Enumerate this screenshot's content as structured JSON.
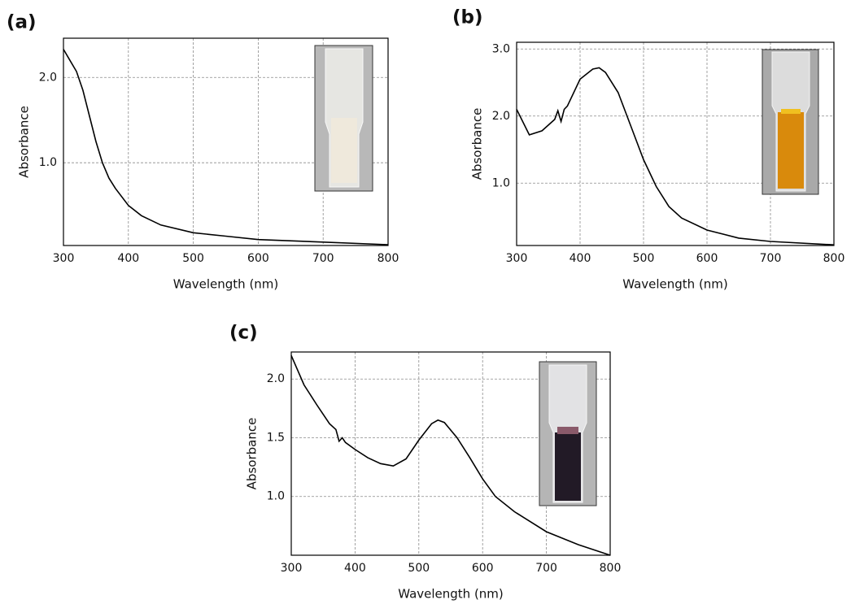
{
  "chart_data": [
    {
      "type": "line",
      "panel_label": "(a)",
      "xlabel": "Wavelength (nm)",
      "ylabel": "Absorbance",
      "color": "#000000",
      "x": [
        300,
        310,
        320,
        330,
        340,
        350,
        360,
        370,
        380,
        400,
        420,
        450,
        500,
        550,
        600,
        700,
        800
      ],
      "values": [
        2.33,
        2.2,
        2.07,
        1.85,
        1.55,
        1.25,
        1.0,
        0.82,
        0.7,
        0.5,
        0.38,
        0.27,
        0.18,
        0.14,
        0.1,
        0.07,
        0.04
      ],
      "xlim": [
        300,
        800
      ],
      "ylim": [
        0.03,
        2.46
      ],
      "xticks": [
        300,
        400,
        500,
        600,
        700,
        800
      ],
      "yticks": [
        {
          "value": 1,
          "label": "1.0"
        },
        {
          "value": 2,
          "label": "2.0"
        }
      ],
      "grid": true
    },
    {
      "type": "line",
      "panel_label": "(b)",
      "xlabel": "Wavelength (nm)",
      "ylabel": "Absorbance",
      "color": "#000000",
      "x": [
        300,
        320,
        340,
        360,
        365,
        370,
        375,
        380,
        400,
        420,
        430,
        440,
        460,
        480,
        500,
        520,
        540,
        560,
        600,
        650,
        700,
        800
      ],
      "values": [
        2.1,
        1.72,
        1.78,
        1.95,
        2.08,
        1.92,
        2.1,
        2.15,
        2.55,
        2.7,
        2.72,
        2.65,
        2.35,
        1.85,
        1.35,
        0.95,
        0.65,
        0.48,
        0.3,
        0.18,
        0.13,
        0.08
      ],
      "xlim": [
        300,
        800
      ],
      "ylim": [
        0.07,
        3.1
      ],
      "xticks": [
        300,
        400,
        500,
        600,
        700,
        800
      ],
      "yticks": [
        {
          "value": 1,
          "label": "1.0"
        },
        {
          "value": 2,
          "label": "2.0"
        },
        {
          "value": 3,
          "label": "3.0"
        }
      ],
      "grid": true
    },
    {
      "type": "line",
      "panel_label": "(c)",
      "xlabel": "Wavelength (nm)",
      "ylabel": "Absorbance",
      "color": "#000000",
      "x": [
        300,
        320,
        340,
        360,
        370,
        375,
        380,
        385,
        400,
        420,
        440,
        460,
        480,
        500,
        520,
        530,
        540,
        560,
        580,
        600,
        620,
        650,
        700,
        750,
        800
      ],
      "values": [
        2.2,
        1.95,
        1.78,
        1.62,
        1.57,
        1.47,
        1.5,
        1.46,
        1.4,
        1.33,
        1.28,
        1.26,
        1.32,
        1.48,
        1.62,
        1.65,
        1.63,
        1.5,
        1.33,
        1.15,
        1.0,
        0.87,
        0.7,
        0.59,
        0.5
      ],
      "xlim": [
        300,
        800
      ],
      "ylim": [
        0.5,
        2.23
      ],
      "xticks": [
        300,
        400,
        500,
        600,
        700,
        800
      ],
      "yticks": [
        {
          "value": 1,
          "label": "1.0"
        },
        {
          "value": 1.5,
          "label": "1.5"
        },
        {
          "value": 2,
          "label": "2.0"
        }
      ],
      "grid": true
    }
  ]
}
